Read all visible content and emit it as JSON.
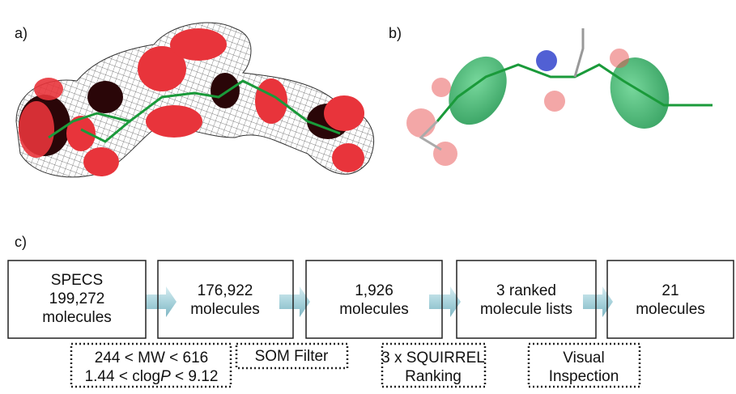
{
  "panels": [
    "a)",
    "b)",
    "c)"
  ],
  "flow": {
    "boxes": [
      {
        "lines": [
          "SPECS",
          "199,272",
          "molecules"
        ]
      },
      {
        "lines": [
          "176,922",
          "molecules"
        ]
      },
      {
        "lines": [
          "1,926",
          "molecules"
        ]
      },
      {
        "lines": [
          "3 ranked",
          "molecule lists"
        ]
      },
      {
        "lines": [
          "21",
          "molecules"
        ]
      }
    ],
    "filters": [
      {
        "lines": [
          "244 < MW < 616"
        ],
        "clogp_line": {
          "before": "1.44 < clog",
          "italic": "P",
          "after": " < 9.12"
        }
      },
      {
        "lines": [
          "SOM Filter"
        ]
      },
      {
        "lines": [
          "3 x SQUIRREL",
          "Ranking"
        ]
      },
      {
        "lines": [
          "Visual",
          "Inspection"
        ]
      }
    ]
  }
}
